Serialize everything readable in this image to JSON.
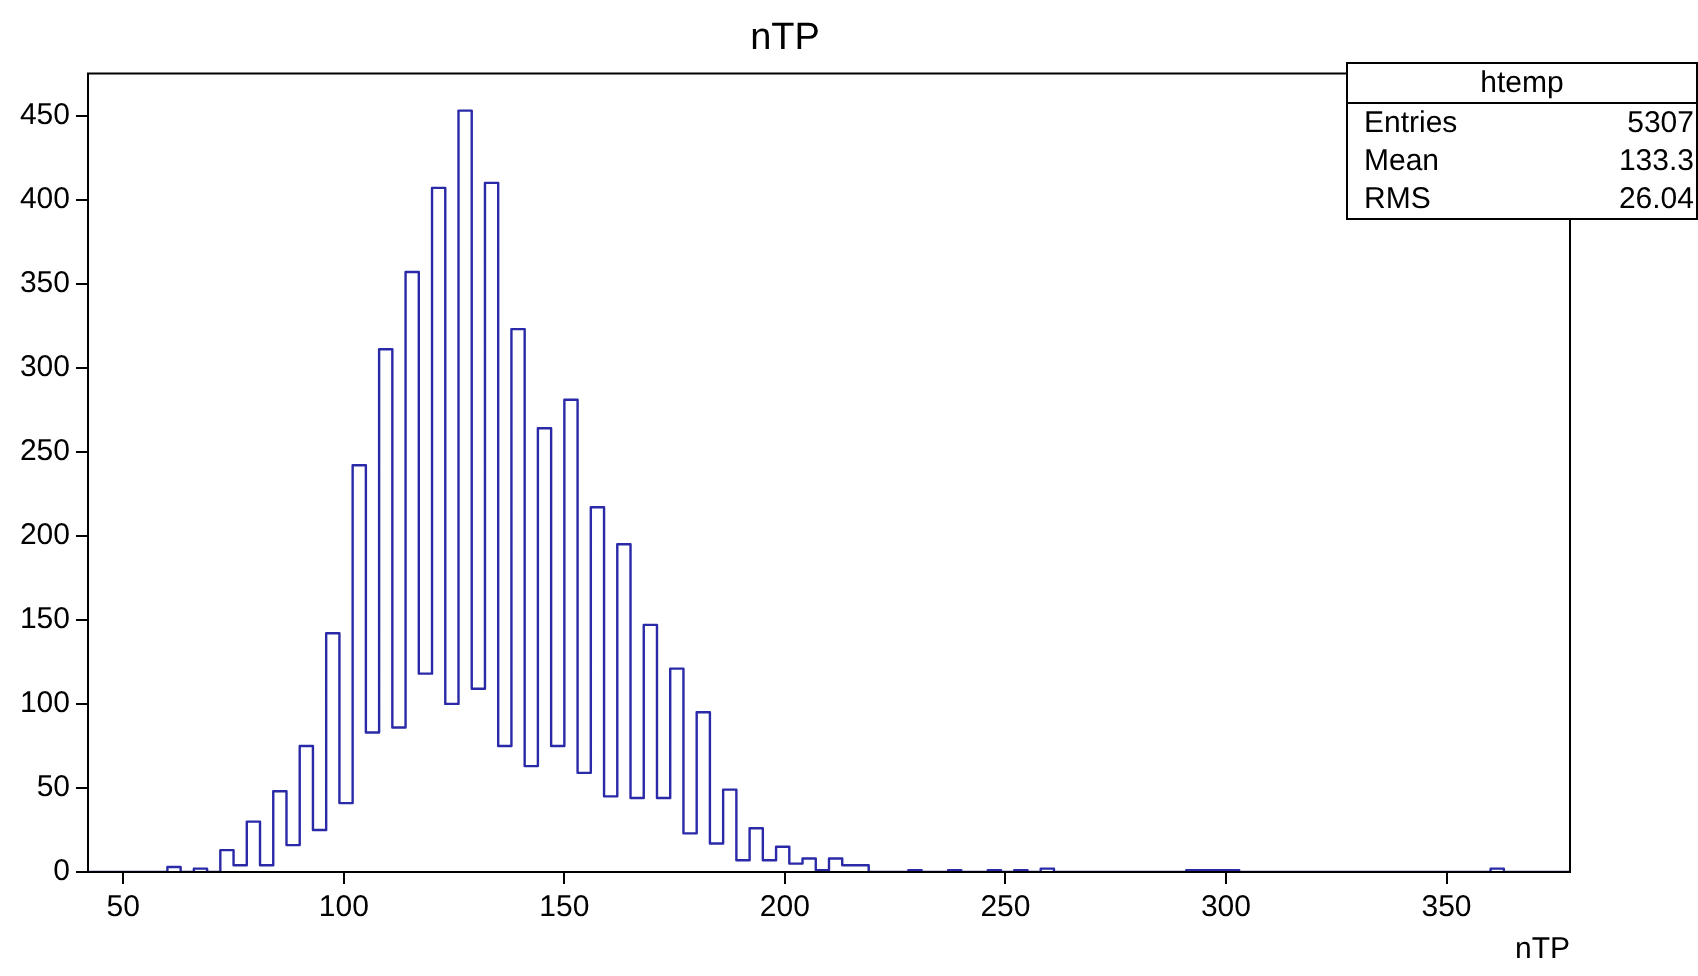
{
  "chart_data": {
    "type": "histogram",
    "title": "nTP",
    "xlabel": "nTP",
    "bins": [
      42,
      45,
      48,
      51,
      54,
      57,
      60,
      63,
      66,
      69,
      72,
      75,
      78,
      81,
      84,
      87,
      90,
      93,
      96,
      99,
      102,
      105,
      108,
      111,
      114,
      117,
      120,
      123,
      126,
      129,
      132,
      135,
      138,
      141,
      144,
      147,
      150,
      153,
      156,
      159,
      162,
      165,
      168,
      171,
      174,
      177,
      180,
      183,
      186,
      189,
      192,
      195,
      198,
      201,
      204,
      207,
      210,
      213,
      216,
      219,
      222,
      225,
      228,
      231,
      234,
      237,
      240,
      243,
      246,
      249,
      252,
      255,
      258,
      261,
      264,
      267,
      270,
      273,
      276,
      279,
      282,
      285,
      288,
      291,
      294,
      297,
      300,
      303,
      306,
      309,
      312,
      315,
      318,
      321,
      324,
      327,
      330,
      333,
      336,
      339,
      342,
      345,
      348,
      351,
      354,
      357,
      360,
      363,
      366,
      369,
      372,
      375,
      378
    ],
    "values": [
      0,
      0,
      0,
      0,
      0,
      0,
      3,
      0,
      2,
      0,
      13,
      4,
      30,
      4,
      48,
      16,
      75,
      25,
      142,
      41,
      242,
      83,
      311,
      86,
      357,
      118,
      407,
      100,
      453,
      109,
      410,
      75,
      323,
      63,
      264,
      75,
      281,
      59,
      217,
      45,
      195,
      44,
      147,
      44,
      121,
      23,
      95,
      17,
      49,
      7,
      26,
      7,
      15,
      5,
      8,
      1,
      8,
      4,
      4,
      0,
      0,
      0,
      1,
      0,
      0,
      1,
      0,
      0,
      1,
      0,
      1,
      0,
      2,
      0,
      0,
      0,
      0,
      0,
      0,
      0,
      0,
      0,
      0,
      1,
      1,
      1,
      1,
      0,
      0,
      0,
      0,
      0,
      0,
      0,
      0,
      0,
      0,
      0,
      0,
      0,
      0,
      0,
      0,
      0,
      0,
      0,
      2,
      0,
      0,
      0,
      0,
      0
    ],
    "color": "#2a2aa8",
    "xlim": [
      42,
      378
    ],
    "xticks": [
      50,
      100,
      150,
      200,
      250,
      300,
      350
    ],
    "ylim": [
      0,
      475
    ],
    "yticks": [
      0,
      50,
      100,
      150,
      200,
      250,
      300,
      350,
      400,
      450
    ],
    "grid": false,
    "legend": false,
    "annotations": [
      "htemp",
      "Entries 5307",
      "Mean 133.3",
      "RMS 26.04"
    ]
  }
}
